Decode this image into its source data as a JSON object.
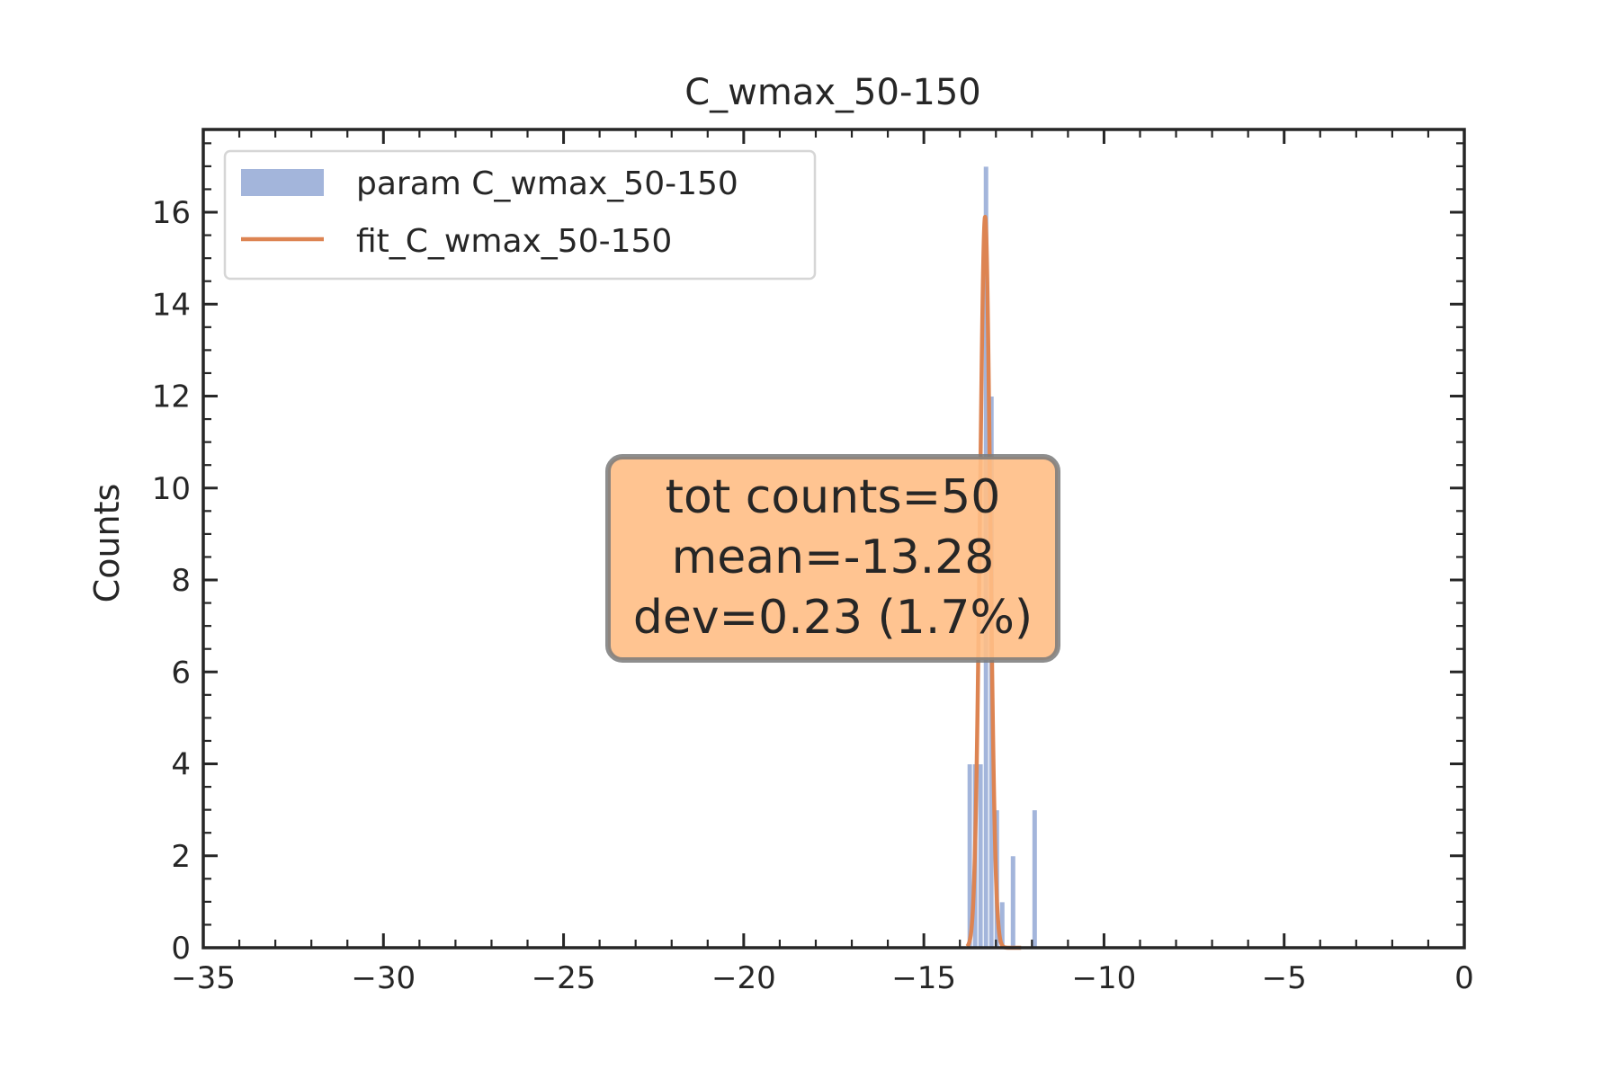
{
  "chart_data": {
    "type": "bar",
    "title": "C_wmax_50-150",
    "xlabel": "",
    "ylabel": "Counts",
    "xlim": [
      -35,
      0
    ],
    "ylim": [
      0,
      17.8
    ],
    "xticks": [
      -35,
      -30,
      -25,
      -20,
      -15,
      -10,
      -5,
      0
    ],
    "xtick_labels": [
      "−35",
      "−30",
      "−25",
      "−20",
      "−15",
      "−10",
      "−5",
      "0"
    ],
    "yticks": [
      0,
      2,
      4,
      6,
      8,
      10,
      12,
      14,
      16
    ],
    "ytick_labels": [
      "0",
      "2",
      "4",
      "6",
      "8",
      "10",
      "12",
      "14",
      "16"
    ],
    "grid": false,
    "legend_position": "upper-left",
    "series": [
      {
        "name": "param C_wmax_50-150",
        "kind": "histogram",
        "color": "#a3b5db",
        "bins": [
          {
            "x0": -13.8,
            "x1": -13.65,
            "count": 4
          },
          {
            "x0": -13.65,
            "x1": -13.5,
            "count": 4
          },
          {
            "x0": -13.5,
            "x1": -13.35,
            "count": 4
          },
          {
            "x0": -13.35,
            "x1": -13.2,
            "count": 17
          },
          {
            "x0": -13.2,
            "x1": -13.05,
            "count": 12
          },
          {
            "x0": -13.05,
            "x1": -12.9,
            "count": 3
          },
          {
            "x0": -12.9,
            "x1": -12.75,
            "count": 1
          },
          {
            "x0": -12.75,
            "x1": -12.6,
            "count": 0
          },
          {
            "x0": -12.6,
            "x1": -12.45,
            "count": 2
          },
          {
            "x0": -12.45,
            "x1": -12.3,
            "count": 0
          },
          {
            "x0": -12.3,
            "x1": -12.15,
            "count": 0
          },
          {
            "x0": -12.15,
            "x1": -12.0,
            "count": 0
          },
          {
            "x0": -12.0,
            "x1": -11.85,
            "count": 3
          }
        ]
      },
      {
        "name": "fit_C_wmax_50-150",
        "kind": "gaussian-fit",
        "color": "#dd8452",
        "amplitude": 15.9,
        "mean": -13.3,
        "sigma": 0.14,
        "x_range": [
          -13.8,
          -12.3
        ]
      }
    ],
    "annotation": {
      "lines": [
        "tot counts=50",
        "mean=-13.28",
        "dev=0.23 (1.7%)"
      ],
      "box_color": "#ffbe85",
      "edge_color": "#7a7a7a"
    }
  }
}
